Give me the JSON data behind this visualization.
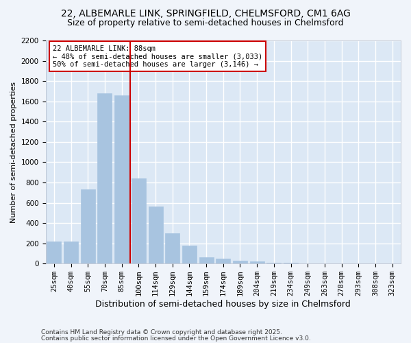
{
  "title1": "22, ALBEMARLE LINK, SPRINGFIELD, CHELMSFORD, CM1 6AG",
  "title2": "Size of property relative to semi-detached houses in Chelmsford",
  "xlabel": "Distribution of semi-detached houses by size in Chelmsford",
  "ylabel": "Number of semi-detached properties",
  "categories": [
    "25sqm",
    "40sqm",
    "55sqm",
    "70sqm",
    "85sqm",
    "100sqm",
    "114sqm",
    "129sqm",
    "144sqm",
    "159sqm",
    "174sqm",
    "189sqm",
    "204sqm",
    "219sqm",
    "234sqm",
    "249sqm",
    "263sqm",
    "278sqm",
    "293sqm",
    "308sqm",
    "323sqm"
  ],
  "values": [
    220,
    220,
    730,
    1680,
    1660,
    840,
    560,
    300,
    180,
    60,
    50,
    30,
    20,
    10,
    5,
    3,
    2,
    2,
    1,
    1,
    1
  ],
  "bar_color": "#a8c4e0",
  "bar_edge_color": "#a8c4e0",
  "vline_color": "#cc0000",
  "annotation_text": "22 ALBEMARLE LINK: 88sqm\n← 48% of semi-detached houses are smaller (3,033)\n50% of semi-detached houses are larger (3,146) →",
  "annotation_box_color": "#ffffff",
  "annotation_box_edge": "#cc0000",
  "ylim": [
    0,
    2200
  ],
  "yticks": [
    0,
    200,
    400,
    600,
    800,
    1000,
    1200,
    1400,
    1600,
    1800,
    2000,
    2200
  ],
  "background_color": "#f0f4fa",
  "plot_background": "#dce8f5",
  "grid_color": "#ffffff",
  "footer1": "Contains HM Land Registry data © Crown copyright and database right 2025.",
  "footer2": "Contains public sector information licensed under the Open Government Licence v3.0.",
  "title1_fontsize": 10,
  "title2_fontsize": 9,
  "xlabel_fontsize": 9,
  "ylabel_fontsize": 8,
  "tick_fontsize": 7.5,
  "annotation_fontsize": 7.5,
  "footer_fontsize": 6.5
}
